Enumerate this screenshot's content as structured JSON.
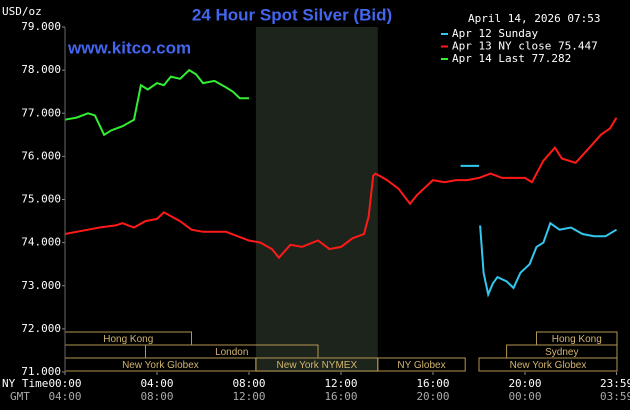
{
  "chart_data": {
    "type": "line",
    "title": "24 Hour Spot Silver (Bid)",
    "site": "www.kitco.com",
    "timestamp": "April 14, 2026 07:53",
    "y_unit": "USD/oz",
    "x_row_labels": [
      "NY Time",
      "GMT"
    ],
    "xlim": [
      0,
      24
    ],
    "xticks": [
      {
        "value": 0,
        "label": "00:00"
      },
      {
        "value": 4,
        "label": "04:00"
      },
      {
        "value": 8,
        "label": "08:00"
      },
      {
        "value": 12,
        "label": "12:00"
      },
      {
        "value": 16,
        "label": "16:00"
      },
      {
        "value": 20,
        "label": "20:00"
      },
      {
        "value": 23.98,
        "label": "23:59"
      }
    ],
    "gmt_tick_labels": [
      "04:00",
      "08:00",
      "12:00",
      "16:00",
      "20:00",
      "00:00",
      "03:59"
    ],
    "ylim": [
      71,
      79
    ],
    "yticks": [
      {
        "value": 71,
        "label": "71.000"
      },
      {
        "value": 72,
        "label": "72.000"
      },
      {
        "value": 73,
        "label": "73.000"
      },
      {
        "value": 74,
        "label": "74.000"
      },
      {
        "value": 75,
        "label": "75.000"
      },
      {
        "value": 76,
        "label": "76.000"
      },
      {
        "value": 77,
        "label": "77.000"
      },
      {
        "value": 78,
        "label": "78.000"
      },
      {
        "value": 79,
        "label": "79.000"
      }
    ],
    "grid": false,
    "shaded_hours": [
      8.3,
      13.6
    ],
    "series": [
      {
        "name": "Apr 12 Sunday",
        "color": "#33c8f0",
        "x": [
          17.2,
          18.0,
          18.01,
          18.05,
          18.2,
          18.4,
          18.6,
          18.8,
          19.2,
          19.5,
          19.8,
          20.2,
          20.5,
          20.8,
          21.1,
          21.5,
          22.0,
          22.5,
          23.0,
          23.5,
          23.98
        ],
        "values": [
          75.78,
          75.78,
          null,
          74.4,
          73.3,
          72.8,
          73.05,
          73.2,
          73.1,
          72.95,
          73.3,
          73.5,
          73.9,
          74.0,
          74.45,
          74.3,
          74.35,
          74.2,
          74.15,
          74.15,
          74.3
        ]
      },
      {
        "name": "Apr 13 NY close 75.447",
        "color": "#ff1a1a",
        "x": [
          0,
          1,
          1.5,
          2.2,
          2.5,
          3.0,
          3.5,
          4.0,
          4.3,
          5.0,
          5.5,
          6.0,
          7.0,
          7.5,
          8.0,
          8.5,
          9.0,
          9.3,
          9.8,
          10.3,
          11.0,
          11.5,
          12.0,
          12.5,
          13.0,
          13.2,
          13.4,
          13.5,
          14.0,
          14.5,
          15.0,
          15.3,
          16.0,
          16.5,
          17.0,
          17.5,
          18.0,
          18.5,
          19.0,
          20.0,
          20.3,
          20.8,
          21.3,
          21.6,
          22.2,
          22.8,
          23.3,
          23.7,
          23.98
        ],
        "values": [
          74.2,
          74.3,
          74.35,
          74.4,
          74.45,
          74.35,
          74.5,
          74.55,
          74.7,
          74.5,
          74.3,
          74.25,
          74.25,
          74.15,
          74.05,
          74.0,
          73.85,
          73.65,
          73.95,
          73.9,
          74.05,
          73.85,
          73.9,
          74.1,
          74.2,
          74.6,
          75.55,
          75.6,
          75.45,
          75.25,
          74.9,
          75.1,
          75.45,
          75.4,
          75.45,
          75.45,
          75.5,
          75.6,
          75.5,
          75.5,
          75.4,
          75.9,
          76.2,
          75.95,
          75.85,
          76.2,
          76.5,
          76.65,
          76.9
        ]
      },
      {
        "name": "Apr 14 Last 77.282",
        "color": "#33ee33",
        "x": [
          0,
          0.5,
          1.0,
          1.3,
          1.7,
          2.0,
          2.5,
          3.0,
          3.3,
          3.6,
          4.0,
          4.3,
          4.6,
          5.0,
          5.4,
          5.7,
          6.0,
          6.5,
          7.0,
          7.3,
          7.6,
          8.0
        ],
        "values": [
          76.85,
          76.9,
          77.0,
          76.95,
          76.5,
          76.6,
          76.7,
          76.85,
          77.65,
          77.55,
          77.7,
          77.65,
          77.85,
          77.8,
          78.0,
          77.9,
          77.7,
          77.75,
          77.6,
          77.5,
          77.35,
          77.35
        ]
      }
    ],
    "sessions": [
      {
        "label": "Hong Kong",
        "start": 0,
        "end": 5.5,
        "row": 0
      },
      {
        "label": "Hong Kong",
        "start": 20.5,
        "end": 24,
        "row": 0
      },
      {
        "label": "London",
        "start": 3.5,
        "end": 11.0,
        "row": 1
      },
      {
        "label": "Sydney",
        "start": 19.2,
        "end": 24,
        "row": 1
      },
      {
        "label": "New York Globex",
        "start": 0,
        "end": 8.3,
        "row": 2
      },
      {
        "label": "New York NYMEX",
        "start": 8.3,
        "end": 13.6,
        "row": 2
      },
      {
        "label": "NY Globex",
        "start": 13.6,
        "end": 17.4,
        "row": 2
      },
      {
        "label": "New York Globex",
        "start": 18.0,
        "end": 24,
        "row": 2
      }
    ]
  }
}
